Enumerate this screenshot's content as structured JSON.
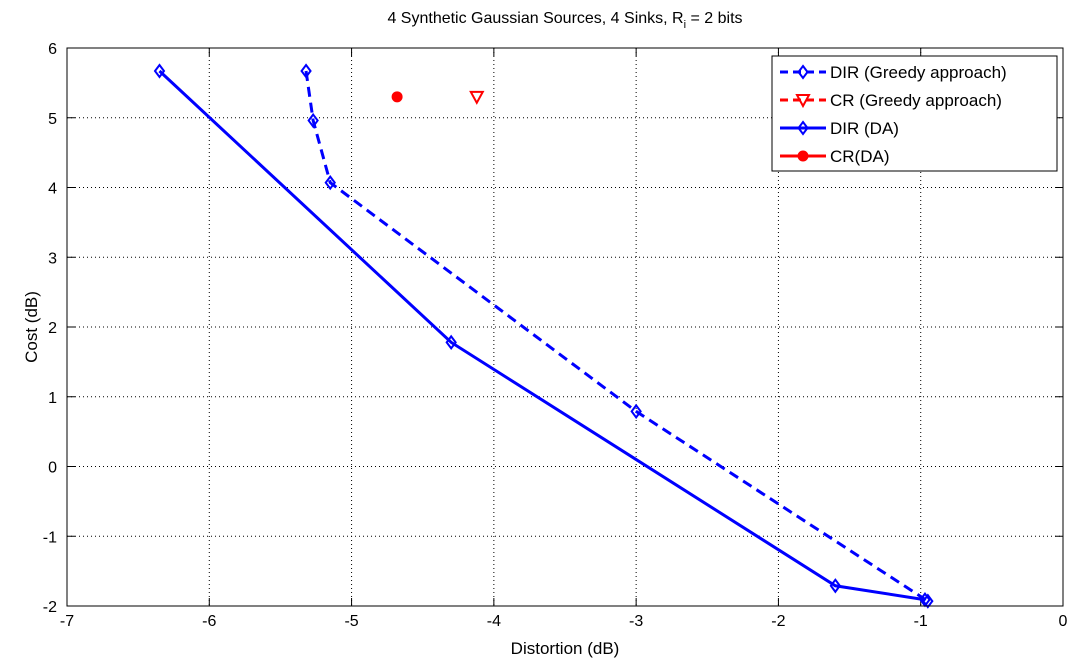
{
  "chart_data": {
    "type": "line",
    "title_main": "4 Synthetic Gaussian Sources, 4 Sinks, R",
    "title_sub": "i",
    "title_tail": " = 2 bits",
    "xlabel": "Distortion (dB)",
    "ylabel": "Cost (dB)",
    "xlim": [
      -7,
      0
    ],
    "ylim": [
      -2,
      6
    ],
    "xticks": [
      -7,
      -6,
      -5,
      -4,
      -3,
      -2,
      -1,
      0
    ],
    "yticks": [
      -2,
      -1,
      0,
      1,
      2,
      3,
      4,
      5,
      6
    ],
    "grid": true,
    "legend_position": "top-right",
    "series": [
      {
        "name": "DIR (Greedy approach)",
        "color": "#0000ff",
        "linestyle": "dashed",
        "marker": "diamond",
        "x": [
          -5.32,
          -5.27,
          -5.15,
          -3.0,
          -0.95
        ],
        "y": [
          5.67,
          4.96,
          4.07,
          0.79,
          -1.93
        ]
      },
      {
        "name": "CR (Greedy approach)",
        "color": "#ff0000",
        "linestyle": "dashed",
        "marker": "triangle-down",
        "x": [
          -4.12
        ],
        "y": [
          5.3
        ]
      },
      {
        "name": "DIR (DA)",
        "color": "#0000ff",
        "linestyle": "solid",
        "marker": "diamond",
        "x": [
          -6.35,
          -4.3,
          -1.6,
          -0.97
        ],
        "y": [
          5.67,
          1.78,
          -1.71,
          -1.91
        ]
      },
      {
        "name": "CR(DA)",
        "color": "#ff0000",
        "linestyle": "solid",
        "marker": "circle",
        "x": [
          -4.68
        ],
        "y": [
          5.3
        ]
      }
    ]
  }
}
